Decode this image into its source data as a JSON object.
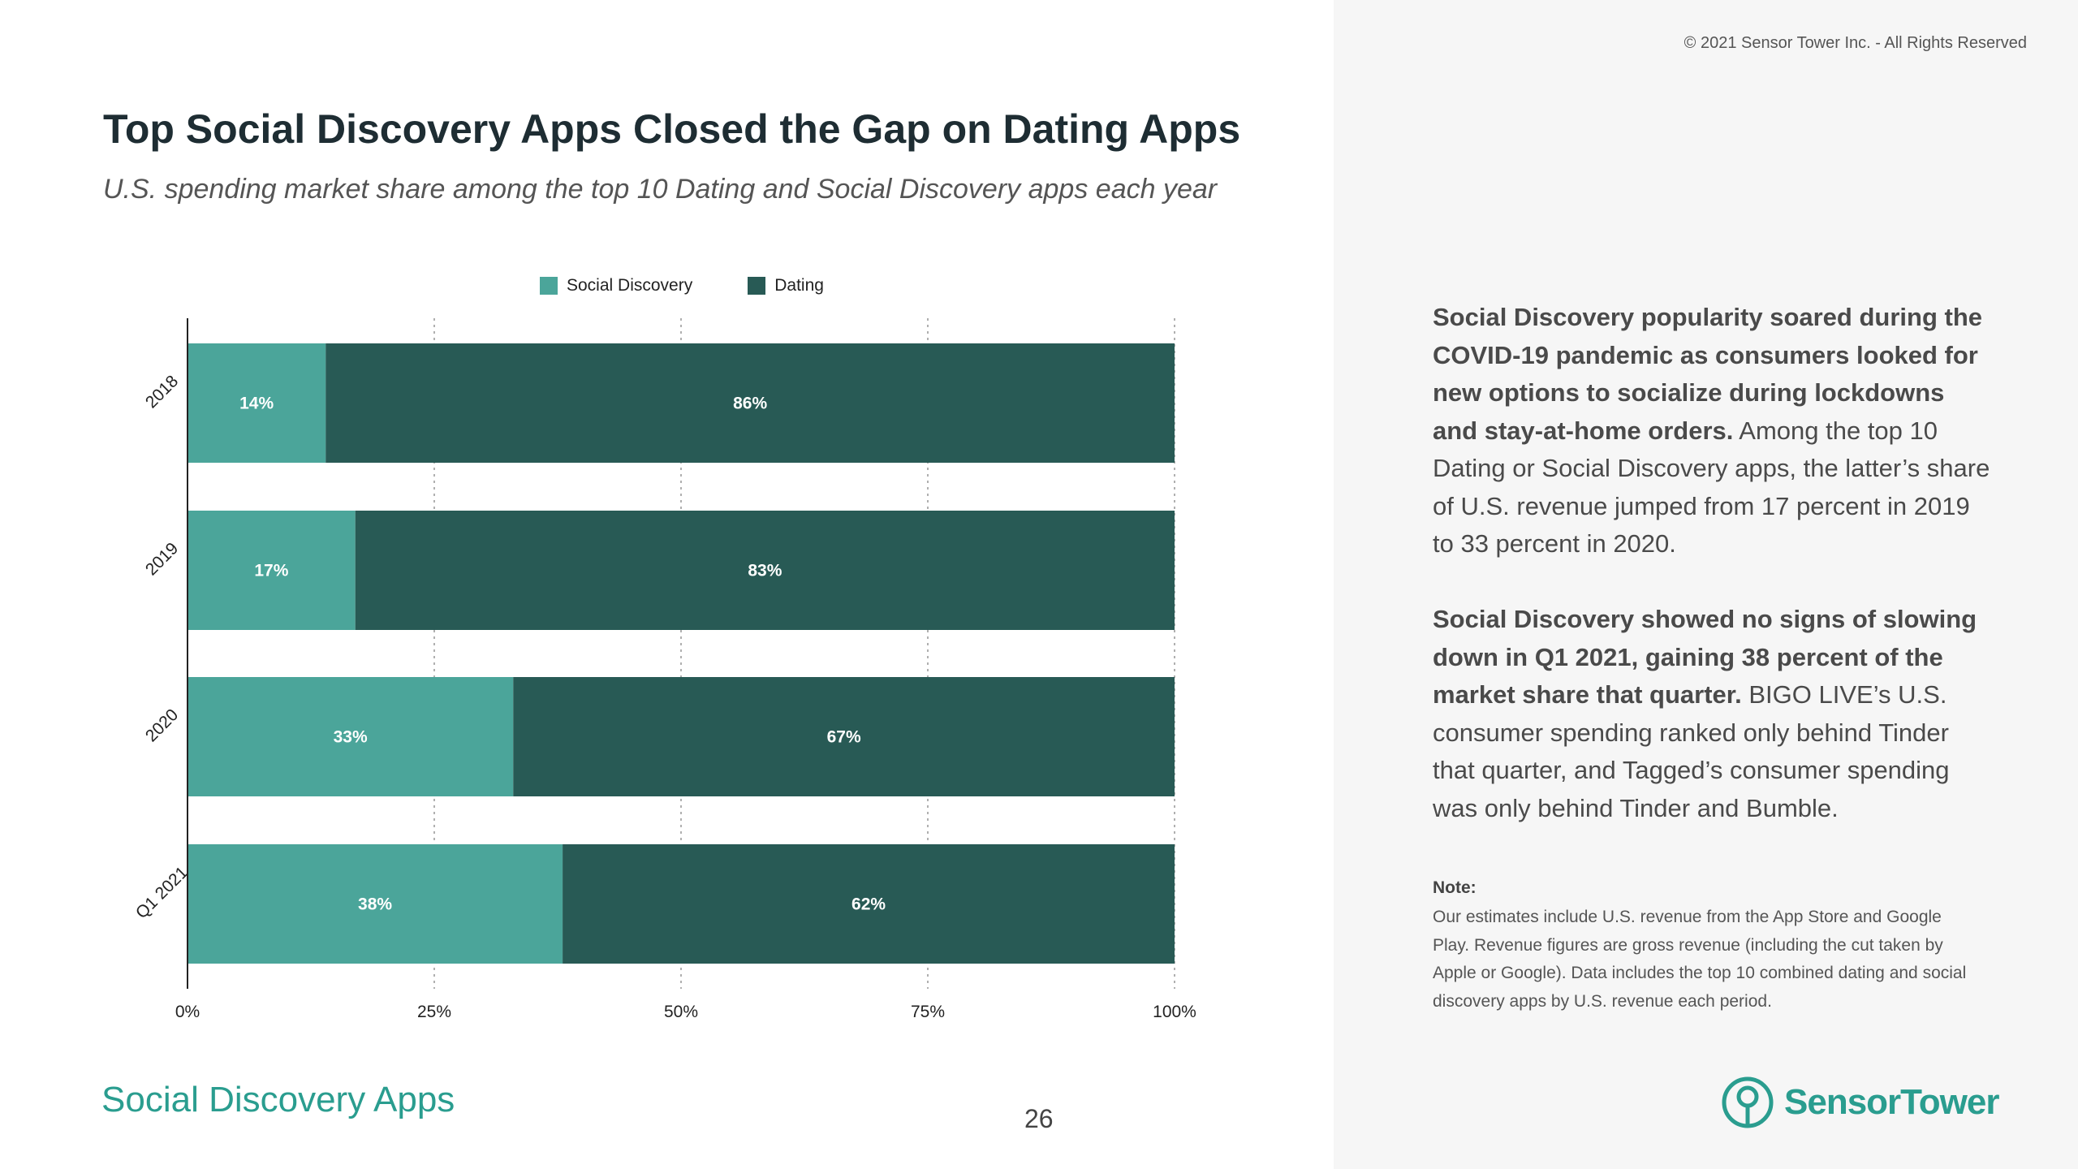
{
  "header": {
    "copyright": "© 2021 Sensor Tower Inc. - All Rights Reserved",
    "title": "Top Social Discovery Apps Closed the Gap on Dating Apps",
    "subtitle": "U.S. spending market share among the top 10 Dating and Social Discovery apps each year"
  },
  "colors": {
    "social_discovery": "#4ba59a",
    "dating": "#285a55",
    "brand": "#2a9d8f"
  },
  "chart_data": {
    "type": "bar",
    "orientation": "horizontal",
    "stacked": true,
    "categories": [
      "2018",
      "2019",
      "2020",
      "Q1 2021"
    ],
    "series": [
      {
        "name": "Social Discovery",
        "values": [
          14,
          17,
          33,
          38
        ],
        "labels": [
          "14%",
          "17%",
          "33%",
          "38%"
        ]
      },
      {
        "name": "Dating",
        "values": [
          86,
          83,
          67,
          62
        ],
        "labels": [
          "86%",
          "83%",
          "67%",
          "62%"
        ]
      }
    ],
    "xlim": [
      0,
      100
    ],
    "xticks": [
      0,
      25,
      50,
      75,
      100
    ],
    "xtick_labels": [
      "0%",
      "25%",
      "50%",
      "75%",
      "100%"
    ],
    "grid": "vertical dotted",
    "legend": "top-center",
    "title": "Top Social Discovery Apps Closed the Gap on Dating Apps",
    "xlabel": "",
    "ylabel": ""
  },
  "sidebar": {
    "para1_bold": "Social Discovery popularity soared during the COVID-19 pandemic as consumers looked for new options to socialize during lockdowns and stay-at-home orders.",
    "para1_rest": " Among the top 10 Dating or Social Discovery apps, the latter’s share of U.S. revenue jumped from 17 percent in 2019 to 33 percent in 2020.",
    "para2_bold": "Social Discovery showed no signs of slowing down in Q1 2021, gaining 38 percent of the market share that quarter.",
    "para2_rest": " BIGO LIVE’s U.S. consumer spending ranked only behind Tinder that quarter, and Tagged’s consumer spending was only behind Tinder and Bumble.",
    "note_label": "Note:",
    "note_text": "Our estimates include U.S. revenue from the App Store and Google Play. Revenue figures are gross revenue (including the cut taken by Apple or Google). Data includes the top 10 combined dating and social discovery apps by U.S. revenue each period."
  },
  "footer": {
    "section_title": "Social Discovery Apps",
    "page_number": "26",
    "brand_name": "SensorTower",
    "brand_icon": "sensor-tower-logo-icon"
  }
}
